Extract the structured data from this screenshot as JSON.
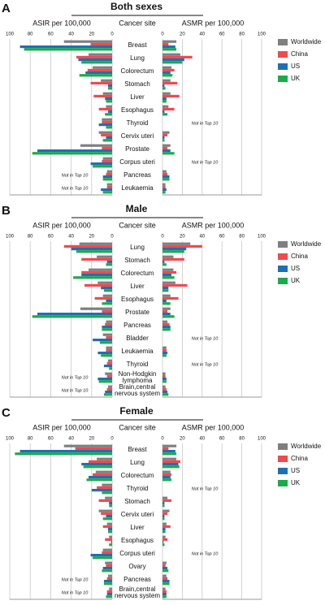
{
  "chart_data": [
    {
      "type": "butterfly",
      "label": "A",
      "title": "Both sexes",
      "asir_label": "ASIR per 100,000",
      "category_label": "Cancer site",
      "asmr_label": "ASMR per 100,000",
      "asir_xlim": [
        100,
        0
      ],
      "asir_xticks": [
        100,
        80,
        60,
        40,
        20,
        0
      ],
      "asmr_xlim": [
        0,
        100
      ],
      "asmr_xticks": [
        0,
        20,
        40,
        60,
        80,
        100
      ],
      "grid": true,
      "categories": [
        "Breast",
        "Lung",
        "Colorectum",
        "Stomach",
        "Liver",
        "Esophagus",
        "Thyroid",
        "Cervix uteri",
        "Prostate",
        "Corpus uteri",
        "Pancreas",
        "Leukaemia"
      ],
      "asir_notes": [
        null,
        null,
        null,
        null,
        null,
        null,
        null,
        null,
        null,
        null,
        "Not in Top 10",
        "Not in Top 10"
      ],
      "asmr_notes": [
        null,
        null,
        null,
        null,
        null,
        null,
        "Not in Top 10",
        null,
        null,
        "Not in Top 10",
        null,
        null
      ],
      "series": [
        {
          "name": "Worldwide",
          "color": "#7f7f7f",
          "asir": [
            47,
            23,
            19,
            11,
            9,
            6,
            10,
            13,
            31,
            9,
            5,
            5
          ],
          "asmr": [
            14,
            18,
            9,
            8,
            8,
            6,
            null,
            7,
            8,
            null,
            4,
            3
          ]
        },
        {
          "name": "China",
          "color": "#f04a4f",
          "asir": [
            21,
            35,
            24,
            21,
            18,
            13,
            10,
            11,
            10,
            10,
            6,
            5
          ],
          "asmr": [
            6,
            30,
            12,
            15,
            17,
            12,
            null,
            5,
            5,
            null,
            5,
            3
          ]
        },
        {
          "name": "US",
          "color": "#1f6fb5",
          "asir": [
            90,
            33,
            26,
            4,
            7,
            4,
            13,
            6,
            73,
            21,
            9,
            11
          ],
          "asmr": [
            13,
            22,
            8,
            2,
            4,
            2,
            null,
            2,
            8,
            null,
            7,
            4
          ]
        },
        {
          "name": "UK",
          "color": "#1aab4b",
          "asir": [
            86,
            30,
            32,
            4,
            6,
            7,
            6,
            9,
            78,
            19,
            9,
            9
          ],
          "asmr": [
            14,
            20,
            10,
            3,
            4,
            5,
            null,
            2,
            12,
            null,
            7,
            3
          ]
        }
      ]
    },
    {
      "type": "butterfly",
      "label": "B",
      "title": "Male",
      "asir_label": "ASIR per 100,000",
      "category_label": "Cancer site",
      "asmr_label": "ASMR per 100,000",
      "asir_xlim": [
        100,
        0
      ],
      "asir_xticks": [
        100,
        80,
        60,
        40,
        20,
        0
      ],
      "asmr_xlim": [
        0,
        100
      ],
      "asmr_xticks": [
        0,
        20,
        40,
        60,
        80,
        100
      ],
      "grid": true,
      "categories": [
        "Lung",
        "Stomach",
        "Colorectum",
        "Liver",
        "Esophagus",
        "Prostate",
        "Pancreas",
        "Bladder",
        "Leukaemia",
        "Thyroid",
        "Non-Hodgkin\nlymphoma",
        "Brain,central\nnervous system"
      ],
      "asir_notes": [
        null,
        null,
        null,
        null,
        null,
        null,
        null,
        null,
        null,
        null,
        "Not in Top 10",
        "Not in Top 10"
      ],
      "asmr_notes": [
        null,
        null,
        null,
        null,
        null,
        null,
        null,
        "Not in Top 10",
        null,
        "Not in Top 10",
        null,
        null
      ],
      "series": [
        {
          "name": "Worldwide",
          "color": "#7f7f7f",
          "asir": [
            32,
            15,
            23,
            14,
            9,
            31,
            6,
            9,
            6,
            4,
            7,
            4
          ],
          "asmr": [
            28,
            11,
            11,
            13,
            8,
            8,
            5,
            null,
            4,
            null,
            3,
            3
          ]
        },
        {
          "name": "China",
          "color": "#f04a4f",
          "asir": [
            47,
            30,
            30,
            27,
            17,
            10,
            7,
            6,
            6,
            5,
            5,
            5
          ],
          "asmr": [
            40,
            22,
            14,
            25,
            16,
            5,
            7,
            null,
            4,
            null,
            3,
            4
          ]
        },
        {
          "name": "US",
          "color": "#1f6fb5",
          "asir": [
            40,
            5,
            30,
            11,
            6,
            73,
            10,
            19,
            14,
            8,
            14,
            7
          ],
          "asmr": [
            24,
            2,
            9,
            6,
            4,
            8,
            8,
            null,
            5,
            null,
            4,
            5
          ]
        },
        {
          "name": "UK",
          "color": "#1aab4b",
          "asir": [
            35,
            6,
            38,
            8,
            10,
            78,
            10,
            12,
            11,
            3,
            13,
            8
          ],
          "asmr": [
            22,
            4,
            12,
            6,
            8,
            12,
            8,
            null,
            4,
            null,
            4,
            6
          ]
        }
      ]
    },
    {
      "type": "butterfly",
      "label": "C",
      "title": "Female",
      "asir_label": "ASIR per 100,000",
      "category_label": "Cancer site",
      "asmr_label": "ASMR per 100,000",
      "asir_xlim": [
        100,
        0
      ],
      "asir_xticks": [
        100,
        80,
        60,
        40,
        20,
        0
      ],
      "asmr_xlim": [
        0,
        100
      ],
      "asmr_xticks": [
        0,
        20,
        40,
        60,
        80,
        100
      ],
      "grid": true,
      "categories": [
        "Breast",
        "Lung",
        "Colorectum",
        "Thyroid",
        "Stomach",
        "Cervix uteri",
        "Liver",
        "Esophagus",
        "Corpus uteri",
        "Ovary",
        "Pancreas",
        "Brain,central\nnervous system"
      ],
      "asir_notes": [
        null,
        null,
        null,
        null,
        null,
        null,
        null,
        null,
        null,
        null,
        "Not in Top 10",
        "Not in Top 10"
      ],
      "asmr_notes": [
        null,
        null,
        null,
        "Not in Top 10",
        null,
        null,
        null,
        null,
        "Not in Top 10",
        null,
        null,
        null
      ],
      "series": [
        {
          "name": "Worldwide",
          "color": "#7f7f7f",
          "asir": [
            47,
            15,
            16,
            10,
            7,
            13,
            5,
            3,
            9,
            7,
            4,
            3
          ],
          "asmr": [
            14,
            14,
            8,
            null,
            5,
            7,
            4,
            3,
            null,
            4,
            4,
            3
          ]
        },
        {
          "name": "China",
          "color": "#f04a4f",
          "asir": [
            36,
            23,
            19,
            15,
            13,
            11,
            9,
            7,
            10,
            6,
            5,
            5
          ],
          "asmr": [
            6,
            18,
            9,
            null,
            9,
            5,
            8,
            5,
            null,
            3,
            5,
            4
          ]
        },
        {
          "name": "US",
          "color": "#1f6fb5",
          "asir": [
            90,
            30,
            23,
            20,
            3,
            6,
            4,
            1,
            21,
            9,
            8,
            5
          ],
          "asmr": [
            13,
            16,
            8,
            null,
            2,
            2,
            3,
            1,
            null,
            5,
            7,
            4
          ]
        },
        {
          "name": "UK",
          "color": "#1aab4b",
          "asir": [
            95,
            28,
            25,
            10,
            3,
            9,
            4,
            3,
            19,
            10,
            8,
            6
          ],
          "asmr": [
            14,
            17,
            9,
            null,
            2,
            2,
            3,
            2,
            null,
            6,
            7,
            4
          ]
        }
      ]
    }
  ]
}
